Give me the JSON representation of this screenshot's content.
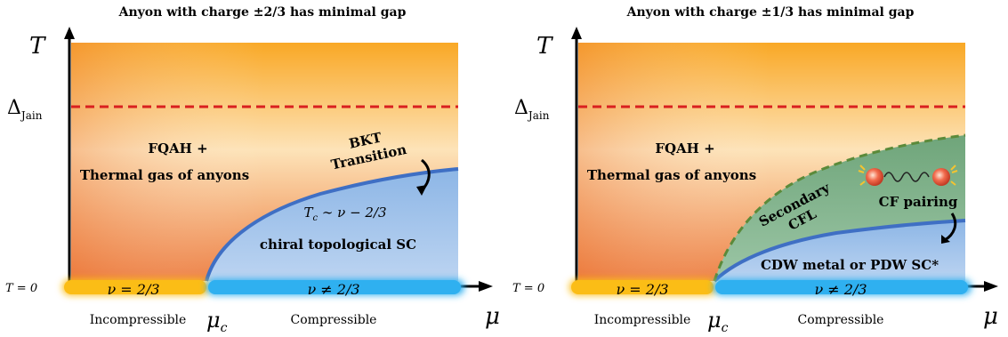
{
  "left": {
    "title": "Anyon with charge ±2/3 has minimal gap",
    "y_axis_label": "T",
    "x_axis_label": "μ",
    "delta_main": "Δ",
    "delta_sub": "Jain",
    "t_zero": "T = 0",
    "nu_left": "ν = 2/3",
    "nu_right": "ν ≠ 2/3",
    "incompressible": "Incompressible",
    "mu_c_main": "μ",
    "mu_c_sub": "c",
    "compressible": "Compressible",
    "fqah_line1": "FQAH +",
    "fqah_line2": "Thermal gas of anyons",
    "bkt_line1": "BKT",
    "bkt_line2": "Transition",
    "tc_label": "T",
    "tc_sub": "c",
    "tc_rest": " ∼ ν − 2/3",
    "sc_label": "chiral topological SC"
  },
  "right": {
    "title": "Anyon with charge ±1/3 has minimal gap",
    "y_axis_label": "T",
    "x_axis_label": "μ",
    "delta_main": "Δ",
    "delta_sub": "Jain",
    "t_zero": "T = 0",
    "nu_left": "ν = 2/3",
    "nu_right": "ν ≠ 2/3",
    "incompressible": "Incompressible",
    "mu_c_main": "μ",
    "mu_c_sub": "c",
    "compressible": "Compressible",
    "fqah_line1": "FQAH +",
    "fqah_line2": "Thermal gas of anyons",
    "secondary_line1": "Secondary",
    "secondary_line2": "CFL",
    "cf_pairing": "CF pairing",
    "cdw_label": "CDW metal or PDW SC*"
  },
  "colors": {
    "orange_top": "#f9a825",
    "orange_bottom": "#ec7a3c",
    "blue_region": "#8fb8e6",
    "blue_line": "#3f6fc4",
    "green_region": "#7db08a",
    "dashed_red": "#d9201f",
    "dashed_green": "#5b8a3a",
    "nu_yellow": "#fbbd16",
    "nu_blue": "#2fb0f0"
  }
}
